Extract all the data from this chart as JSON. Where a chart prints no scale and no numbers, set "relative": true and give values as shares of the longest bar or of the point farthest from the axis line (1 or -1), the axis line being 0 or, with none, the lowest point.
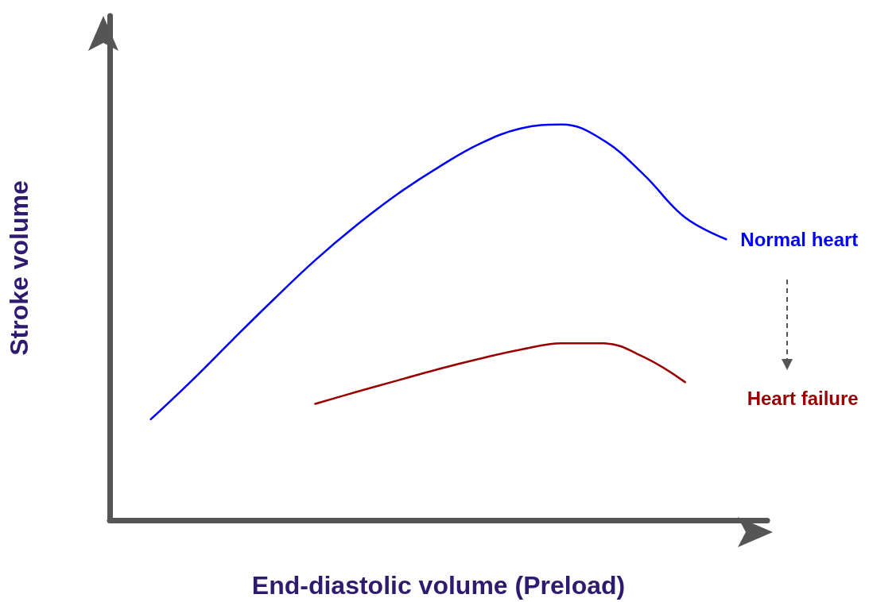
{
  "chart_data": {
    "type": "line",
    "relative": true,
    "xlabel": "End-diastolic volume (Preload)",
    "ylabel": "Stroke volume",
    "categories": [
      null,
      null,
      null,
      null,
      null,
      null,
      null,
      null,
      null,
      null,
      null,
      null,
      null,
      null,
      null,
      null,
      null
    ],
    "series": [
      {
        "name": "Normal heart",
        "color": "#0000ff",
        "values": [
          null,
          0.255,
          0.353,
          0.457,
          0.559,
          0.657,
          0.745,
          0.824,
          0.892,
          0.951,
          0.99,
          1,
          0.961,
          0.873,
          0.765,
          0.71,
          null
        ]
      },
      {
        "name": "Heart failure",
        "color": "#990000",
        "values": [
          null,
          null,
          null,
          null,
          null,
          0.294,
          0.324,
          0.353,
          0.382,
          0.408,
          0.431,
          0.447,
          0.447,
          0.412,
          0.349,
          null,
          null
        ]
      }
    ]
  }
}
